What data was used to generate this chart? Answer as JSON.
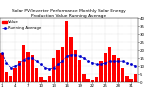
{
  "title": "Solar PV/Inverter Performance Monthly Solar Energy Production Value Running Average",
  "bar_values": [
    18,
    6,
    4,
    9,
    13,
    23,
    19,
    17,
    9,
    3,
    1,
    4,
    15,
    20,
    22,
    38,
    28,
    20,
    14,
    5,
    2,
    1,
    3,
    13,
    18,
    22,
    17,
    15,
    9,
    4,
    2,
    5
  ],
  "running_avg": [
    18,
    12,
    9,
    10,
    11,
    14,
    15,
    15,
    13,
    11,
    9,
    8,
    9,
    11,
    13,
    16,
    17,
    17,
    16,
    15,
    13,
    12,
    11,
    11,
    12,
    13,
    13,
    13,
    13,
    12,
    11,
    10
  ],
  "bar_color": "#ff0000",
  "avg_color": "#0000cc",
  "background_color": "#ffffff",
  "grid_color": "#bbbbbb",
  "ylim": [
    0,
    40
  ],
  "yticks": [
    0,
    5,
    10,
    15,
    20,
    25,
    30,
    35,
    40
  ],
  "title_fontsize": 3.2,
  "tick_fontsize": 2.8,
  "legend_fontsize": 2.8
}
